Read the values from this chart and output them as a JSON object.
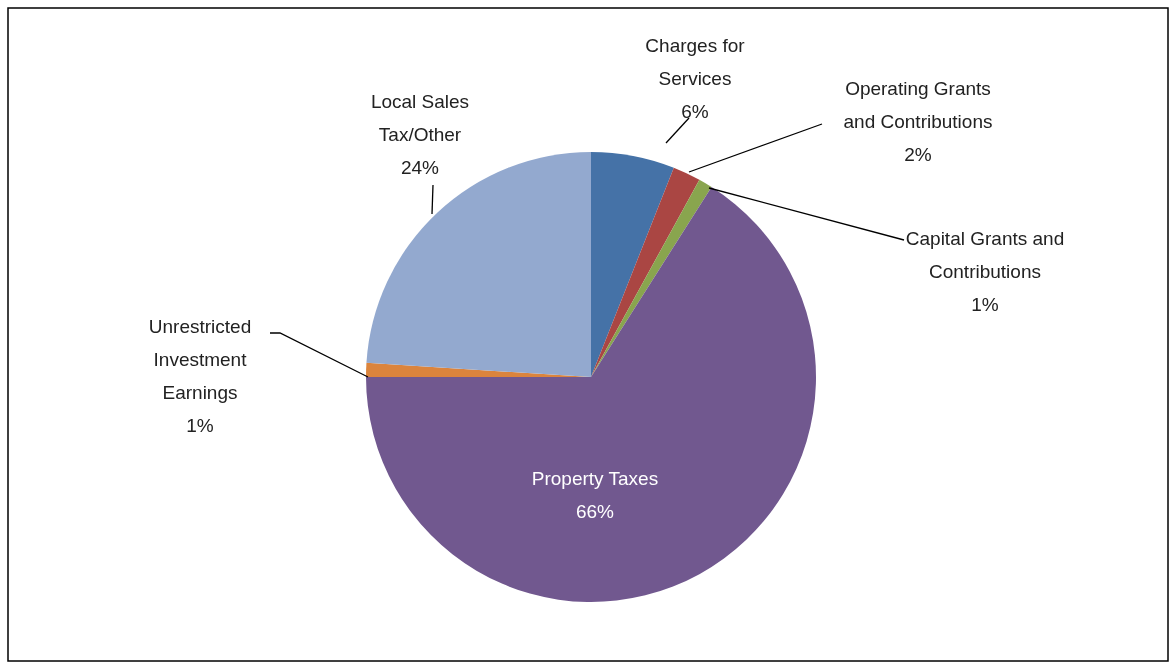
{
  "chart_data": {
    "type": "pie",
    "categories": [
      "Charges for Services",
      "Operating Grants and Contributions",
      "Capital Grants and Contributions",
      "Property Taxes",
      "Unrestricted Investment Earnings",
      "Local Sales Tax/Other"
    ],
    "values": [
      6,
      2,
      1,
      66,
      1,
      24
    ],
    "value_labels": [
      "6%",
      "2%",
      "1%",
      "66%",
      "1%",
      "24%"
    ],
    "colors": [
      "#4572a7",
      "#aa4643",
      "#89a54e",
      "#71588f",
      "#db843d",
      "#93a9cf"
    ]
  }
}
